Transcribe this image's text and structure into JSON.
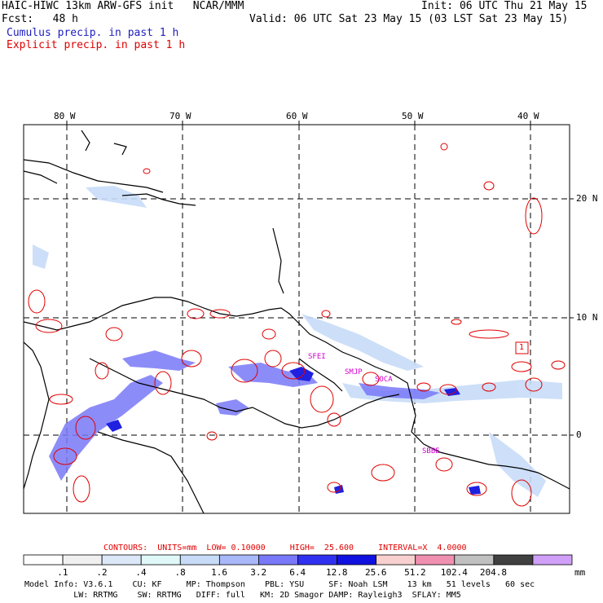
{
  "header": {
    "title_left": "HAIC-HIWC 13km ARW-GFS init   NCAR/MMM",
    "fcst": "Fcst:   48 h",
    "init": "Init: 06 UTC Thu 21 May 15",
    "valid": "Valid: 06 UTC Sat 23 May 15 (03 LST Sat 23 May 15)",
    "legend_cumulus": "Cumulus precip. in past 1 h",
    "legend_explicit": "Explicit precip. in past 1 h",
    "colors": {
      "cumulus": "#2020c0",
      "explicit": "#e00000"
    }
  },
  "map": {
    "lon_labels": [
      "80 W",
      "70 W",
      "60 W",
      "50 W",
      "40 W"
    ],
    "lat_labels": [
      "20 N",
      "10 N",
      "0"
    ],
    "site_labels": [
      "SFEI",
      "SMJP",
      "SOCA",
      "SBBE"
    ],
    "max_marker": "1"
  },
  "contours": {
    "text": "CONTOURS:  UNITS=mm  LOW= 0.10000     HIGH=  25.600     INTERVAL=X  4.0000"
  },
  "colorbar": {
    "labels": [
      ".1",
      ".2",
      ".4",
      ".8",
      "1.6",
      "3.2",
      "6.4",
      "12.8",
      "25.6",
      "51.2",
      "102.4",
      "204.8"
    ],
    "unit": "mm",
    "colors": [
      "#ffffff",
      "#f0f0f0",
      "#dce8f8",
      "#e0f8f8",
      "#c8dcf8",
      "#a8b8f8",
      "#7878f8",
      "#3030f0",
      "#1010e0",
      "#f8d0d0",
      "#f090b0",
      "#c0c0c0",
      "#404040",
      "#d0a0f8"
    ]
  },
  "footer": {
    "line1": "Model Info: V3.6.1    CU: KF     MP: Thompson    PBL: YSU     SF: Noah LSM    13 km   51 levels   60 sec",
    "line2": "          LW: RRTMG    SW: RRTMG   DIFF: full   KM: 2D Smagor DAMP: Rayleigh3  SFLAY: MM5"
  }
}
